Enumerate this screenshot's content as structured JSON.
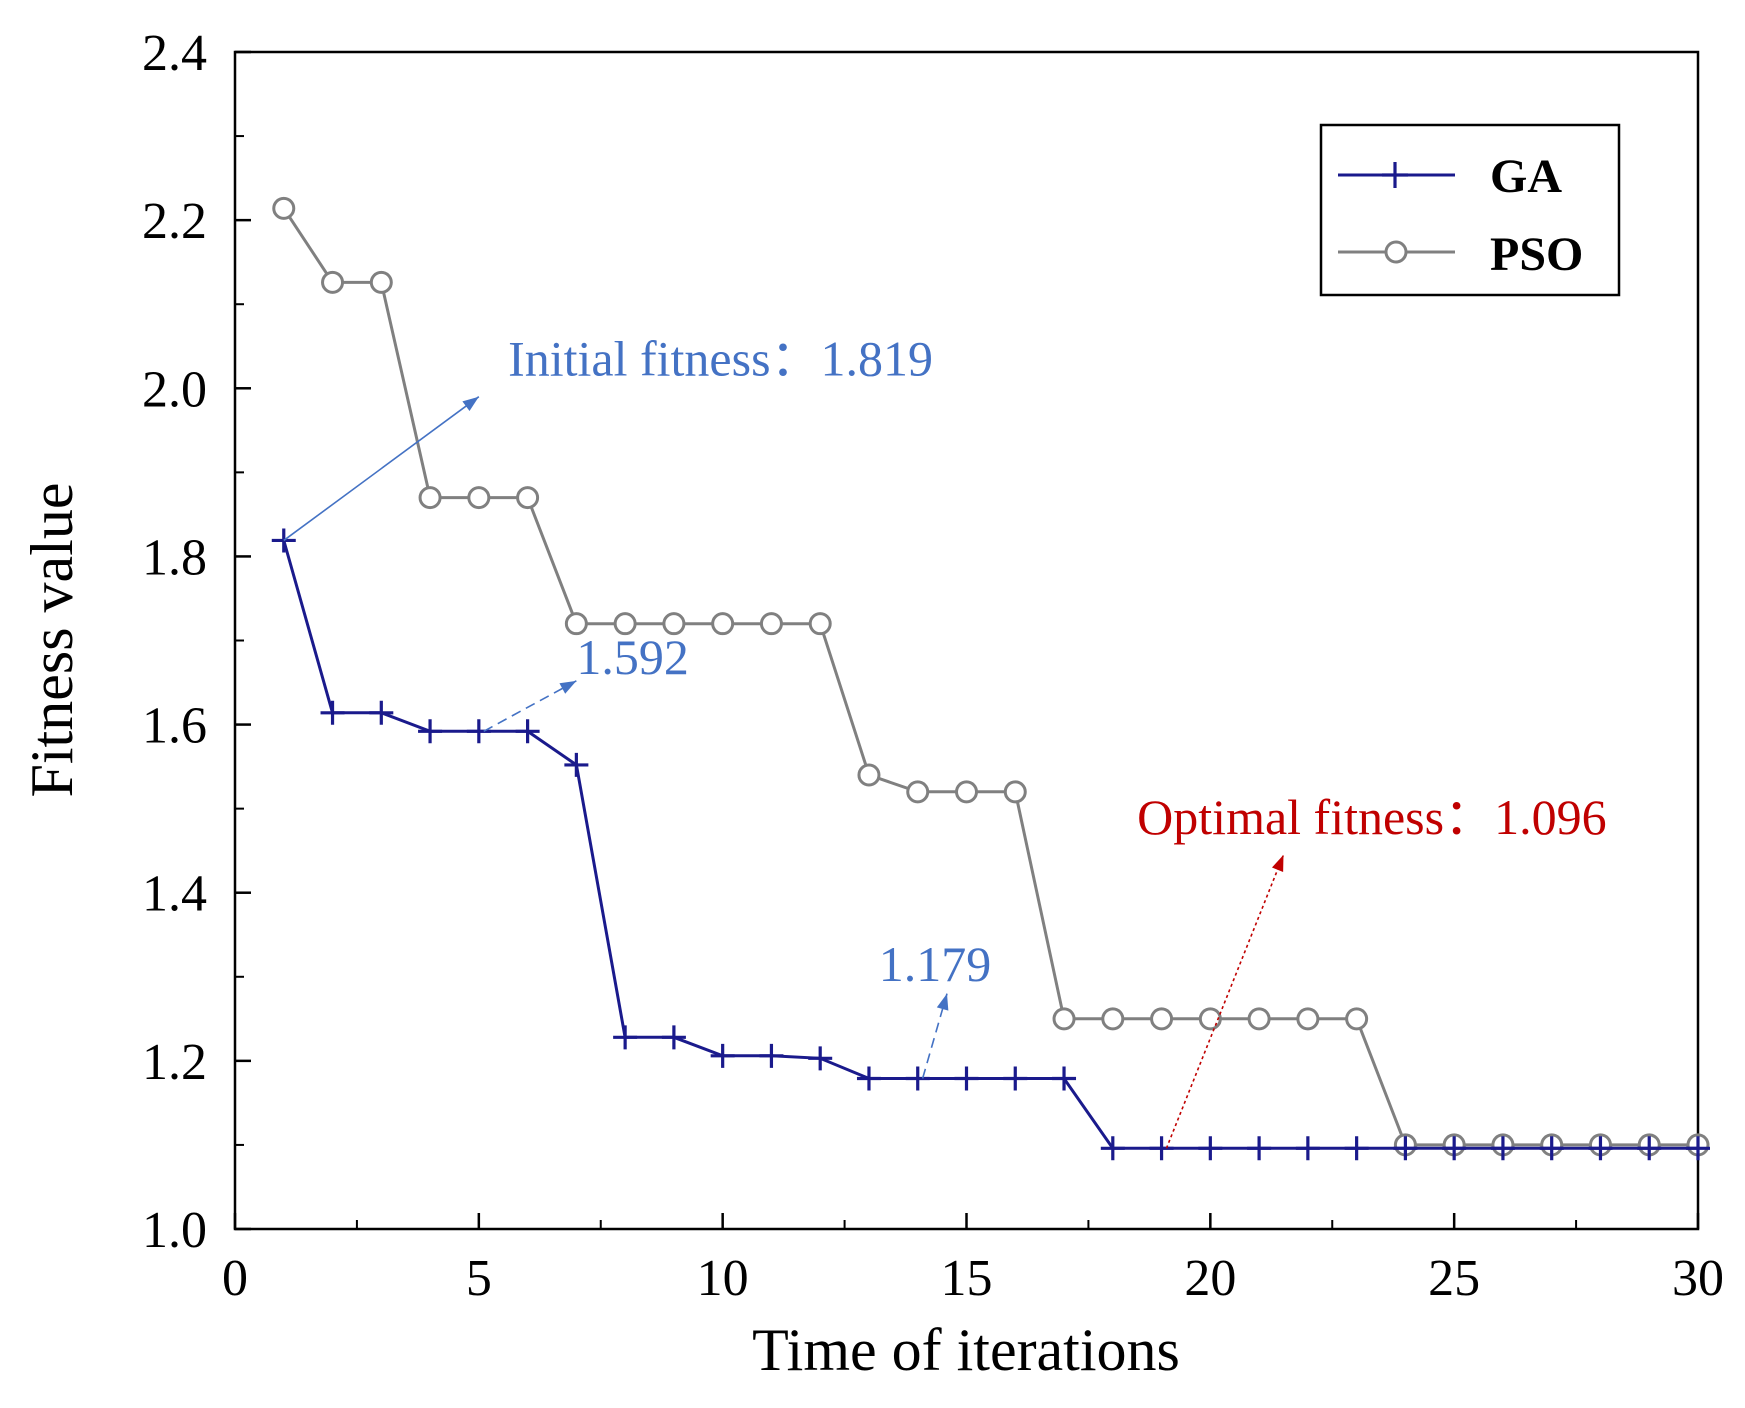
{
  "chart_data": {
    "type": "line",
    "title": "",
    "xlabel": "Time of iterations",
    "ylabel": "Fitness value",
    "xlim": [
      0,
      30
    ],
    "ylim": [
      1.0,
      2.4
    ],
    "xticks": [
      0,
      5,
      10,
      15,
      20,
      25,
      30
    ],
    "yticks": [
      1.0,
      1.2,
      1.4,
      1.6,
      1.8,
      2.0,
      2.2,
      2.4
    ],
    "ytick_labels": [
      "1.0",
      "1.2",
      "1.4",
      "1.6",
      "1.8",
      "2.0",
      "2.2",
      "2.4"
    ],
    "legend_position": "top-right",
    "series": [
      {
        "name": "GA",
        "color": "#1a1a8c",
        "marker": "plus",
        "x": [
          1,
          2,
          3,
          4,
          5,
          6,
          7,
          8,
          9,
          10,
          11,
          12,
          13,
          14,
          15,
          16,
          17,
          18,
          19,
          20,
          21,
          22,
          23,
          24,
          25,
          26,
          27,
          28,
          29,
          30
        ],
        "values": [
          1.819,
          1.614,
          1.614,
          1.592,
          1.592,
          1.592,
          1.552,
          1.228,
          1.228,
          1.206,
          1.206,
          1.203,
          1.179,
          1.179,
          1.179,
          1.179,
          1.179,
          1.096,
          1.096,
          1.096,
          1.096,
          1.096,
          1.096,
          1.096,
          1.096,
          1.096,
          1.096,
          1.096,
          1.096,
          1.096
        ]
      },
      {
        "name": "PSO",
        "color": "#808080",
        "marker": "circle",
        "x": [
          1,
          2,
          3,
          4,
          5,
          6,
          7,
          8,
          9,
          10,
          11,
          12,
          13,
          14,
          15,
          16,
          17,
          18,
          19,
          20,
          21,
          22,
          23,
          24,
          25,
          26,
          27,
          28,
          29,
          30
        ],
        "values": [
          2.214,
          2.126,
          2.126,
          1.87,
          1.87,
          1.87,
          1.72,
          1.72,
          1.72,
          1.72,
          1.72,
          1.72,
          1.54,
          1.52,
          1.52,
          1.52,
          1.25,
          1.25,
          1.25,
          1.25,
          1.25,
          1.25,
          1.25,
          1.1,
          1.1,
          1.1,
          1.1,
          1.1,
          1.1,
          1.1
        ]
      }
    ],
    "annotations": [
      {
        "text": "Initial fitness：1.819",
        "color": "#4472c4",
        "from": [
          1,
          1.819
        ],
        "to": [
          5,
          1.99
        ],
        "text_at": [
          5.6,
          2.015
        ],
        "style": "solid"
      },
      {
        "text": "1.592",
        "color": "#4472c4",
        "from": [
          5.1,
          1.592
        ],
        "to": [
          7,
          1.652
        ],
        "text_at": [
          7,
          1.66
        ],
        "style": "dashed"
      },
      {
        "text": "1.179",
        "color": "#4472c4",
        "from": [
          14.1,
          1.179
        ],
        "to": [
          14.6,
          1.28
        ],
        "text_at": [
          13.2,
          1.295
        ],
        "style": "dashed"
      },
      {
        "text": "Optimal fitness：1.096",
        "color": "#c00000",
        "from": [
          19.1,
          1.096
        ],
        "to": [
          21.5,
          1.445
        ],
        "text_at": [
          18.5,
          1.47
        ],
        "style": "dotted"
      }
    ]
  }
}
